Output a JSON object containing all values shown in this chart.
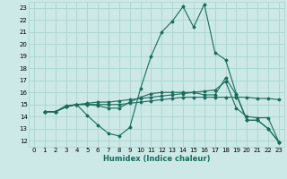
{
  "title": "",
  "xlabel": "Humidex (Indice chaleur)",
  "xlim": [
    -0.5,
    23.5
  ],
  "ylim": [
    11.5,
    23.5
  ],
  "xticks": [
    0,
    1,
    2,
    3,
    4,
    5,
    6,
    7,
    8,
    9,
    10,
    11,
    12,
    13,
    14,
    15,
    16,
    17,
    18,
    19,
    20,
    21,
    22,
    23
  ],
  "yticks": [
    12,
    13,
    14,
    15,
    16,
    17,
    18,
    19,
    20,
    21,
    22,
    23
  ],
  "bg_color": "#cce9e7",
  "grid_color": "#aad4d1",
  "line_color": "#1a6b5c",
  "lines": [
    [
      14.4,
      14.4,
      14.9,
      15.0,
      14.1,
      13.3,
      12.6,
      12.4,
      13.1,
      16.3,
      19.0,
      21.0,
      21.9,
      23.1,
      21.4,
      23.3,
      19.3,
      18.7,
      15.9,
      13.7,
      13.7,
      13.0,
      11.9
    ],
    [
      14.4,
      14.4,
      14.8,
      15.0,
      15.1,
      15.2,
      15.2,
      15.3,
      15.4,
      15.5,
      15.6,
      15.7,
      15.8,
      15.9,
      16.0,
      16.1,
      16.2,
      16.9,
      14.7,
      14.0,
      13.9,
      13.9,
      11.9
    ],
    [
      14.4,
      14.4,
      14.8,
      15.0,
      15.0,
      15.0,
      15.0,
      15.0,
      15.1,
      15.2,
      15.3,
      15.4,
      15.5,
      15.6,
      15.6,
      15.6,
      15.6,
      15.6,
      15.6,
      15.6,
      15.5,
      15.5,
      15.4
    ],
    [
      14.4,
      14.4,
      14.8,
      15.0,
      15.0,
      14.9,
      14.7,
      14.7,
      15.2,
      15.6,
      15.9,
      16.0,
      16.0,
      16.0,
      16.0,
      15.8,
      15.8,
      17.2,
      15.8,
      13.7,
      13.7,
      13.0,
      11.9
    ]
  ],
  "x_start": 1
}
